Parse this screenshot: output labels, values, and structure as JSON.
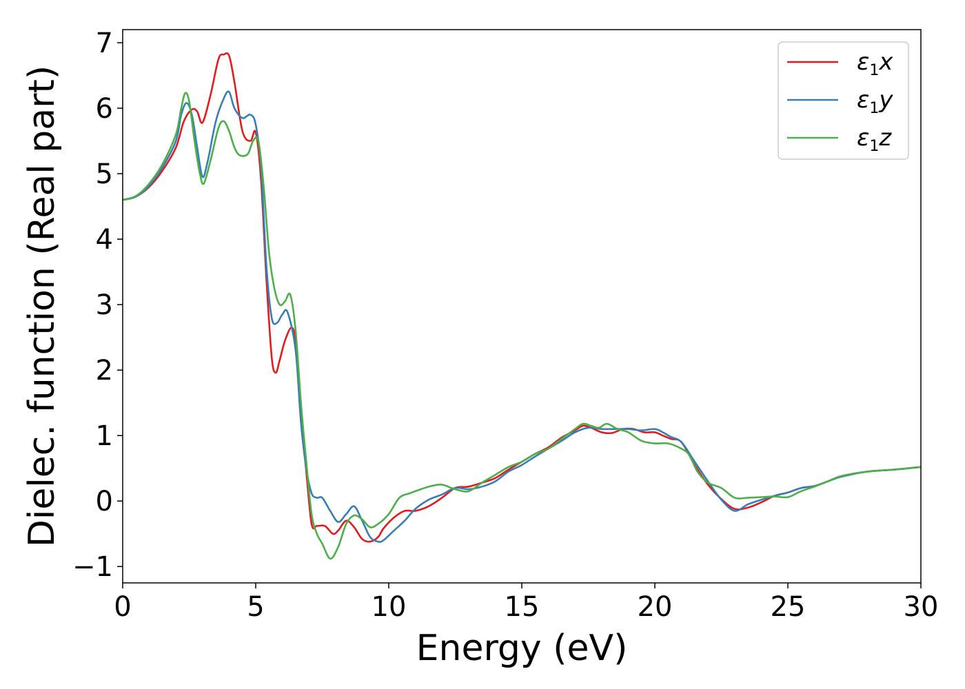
{
  "chart_data": {
    "type": "line",
    "title": "",
    "xlabel": "Energy (eV)",
    "ylabel": "Dielec. function (Real part)",
    "xlim": [
      0,
      30
    ],
    "ylim": [
      -1.25,
      7.2
    ],
    "xticks": [
      0,
      5,
      10,
      15,
      20,
      25,
      30
    ],
    "xtick_labels": [
      "0",
      "5",
      "10",
      "15",
      "20",
      "25",
      "30"
    ],
    "yticks": [
      -1,
      0,
      1,
      2,
      3,
      4,
      5,
      6,
      7
    ],
    "ytick_labels": [
      "−1",
      "0",
      "1",
      "2",
      "3",
      "4",
      "5",
      "6",
      "7"
    ],
    "grid": false,
    "legend_position": "top-right",
    "series": [
      {
        "name": "ε₁x",
        "legend_main": "ε",
        "legend_sub": "1",
        "legend_tail": "x",
        "color": "#e41a1c",
        "x": [
          0,
          0.5,
          1,
          1.5,
          2,
          2.3,
          2.6,
          2.8,
          3.0,
          3.3,
          3.6,
          3.8,
          4.0,
          4.2,
          4.5,
          4.8,
          5.0,
          5.2,
          5.4,
          5.6,
          5.75,
          5.9,
          6.1,
          6.35,
          6.5,
          6.7,
          6.9,
          7.1,
          7.3,
          7.6,
          7.9,
          8.1,
          8.4,
          8.7,
          9.0,
          9.3,
          9.6,
          9.8,
          10.2,
          10.6,
          11.0,
          11.5,
          12.0,
          12.5,
          13.0,
          13.5,
          14.0,
          14.5,
          15.0,
          15.5,
          16.0,
          16.5,
          17.0,
          17.3,
          17.6,
          18.0,
          18.4,
          18.8,
          19.2,
          19.6,
          20.0,
          20.3,
          20.6,
          21.0,
          21.5,
          22.0,
          22.5,
          23.0,
          23.5,
          24.0,
          24.5,
          25.0,
          25.5,
          26.0,
          26.5,
          27.0,
          28.0,
          29.0,
          30.0
        ],
        "y": [
          4.6,
          4.65,
          4.8,
          5.05,
          5.4,
          5.8,
          5.98,
          5.95,
          5.78,
          6.2,
          6.75,
          6.82,
          6.8,
          6.4,
          5.65,
          5.5,
          5.63,
          4.9,
          3.4,
          2.2,
          1.96,
          2.15,
          2.45,
          2.65,
          2.4,
          1.3,
          0.45,
          -0.35,
          -0.38,
          -0.38,
          -0.5,
          -0.45,
          -0.3,
          -0.4,
          -0.58,
          -0.62,
          -0.55,
          -0.42,
          -0.25,
          -0.15,
          -0.15,
          -0.08,
          0.05,
          0.2,
          0.22,
          0.28,
          0.35,
          0.48,
          0.6,
          0.72,
          0.82,
          0.97,
          1.08,
          1.15,
          1.12,
          1.05,
          1.04,
          1.1,
          1.1,
          1.05,
          1.05,
          1.0,
          0.95,
          0.9,
          0.55,
          0.25,
          0.03,
          -0.12,
          -0.1,
          -0.02,
          0.08,
          0.13,
          0.2,
          0.23,
          0.3,
          0.38,
          0.45,
          0.48,
          0.52
        ]
      },
      {
        "name": "ε₁y",
        "legend_main": "ε",
        "legend_sub": "1",
        "legend_tail": "y",
        "color": "#377eb8",
        "x": [
          0,
          0.5,
          1,
          1.5,
          2,
          2.2,
          2.4,
          2.6,
          2.8,
          3.0,
          3.2,
          3.5,
          3.8,
          4.0,
          4.2,
          4.5,
          4.8,
          5.0,
          5.2,
          5.4,
          5.6,
          5.8,
          6.0,
          6.2,
          6.5,
          6.7,
          6.9,
          7.1,
          7.3,
          7.5,
          7.8,
          8.1,
          8.4,
          8.7,
          9.0,
          9.3,
          9.6,
          9.8,
          10.2,
          10.6,
          11.0,
          11.5,
          12.0,
          12.5,
          13.0,
          13.5,
          14.0,
          14.5,
          15.0,
          15.5,
          16.0,
          16.5,
          17.0,
          17.5,
          18.0,
          18.5,
          19.0,
          19.5,
          20.0,
          20.3,
          20.6,
          21.0,
          21.5,
          22.0,
          22.5,
          23.0,
          23.5,
          24.0,
          24.5,
          25.0,
          25.5,
          26.0,
          26.5,
          27.0,
          28.0,
          29.0,
          30.0
        ],
        "y": [
          4.6,
          4.65,
          4.82,
          5.1,
          5.5,
          5.9,
          6.08,
          5.9,
          5.4,
          4.95,
          5.2,
          5.8,
          6.15,
          6.25,
          6.0,
          5.85,
          5.9,
          5.75,
          5.1,
          3.6,
          2.8,
          2.72,
          2.85,
          2.88,
          2.3,
          1.2,
          0.5,
          0.12,
          0.05,
          0.05,
          -0.15,
          -0.32,
          -0.2,
          -0.08,
          -0.3,
          -0.55,
          -0.62,
          -0.6,
          -0.45,
          -0.3,
          -0.12,
          0.02,
          0.1,
          0.2,
          0.18,
          0.22,
          0.3,
          0.45,
          0.55,
          0.68,
          0.8,
          0.92,
          1.05,
          1.12,
          1.1,
          1.1,
          1.1,
          1.08,
          1.1,
          1.05,
          0.98,
          0.9,
          0.6,
          0.3,
          0.02,
          -0.15,
          -0.05,
          0.02,
          0.08,
          0.13,
          0.2,
          0.23,
          0.3,
          0.37,
          0.45,
          0.48,
          0.52
        ]
      },
      {
        "name": "ε₁z",
        "legend_main": "ε",
        "legend_sub": "1",
        "legend_tail": "z",
        "color": "#4daf4a",
        "x": [
          0,
          0.5,
          1,
          1.5,
          2,
          2.2,
          2.35,
          2.5,
          2.7,
          2.9,
          3.05,
          3.3,
          3.6,
          3.8,
          4.0,
          4.2,
          4.4,
          4.7,
          4.9,
          5.1,
          5.3,
          5.5,
          5.7,
          5.9,
          6.1,
          6.3,
          6.5,
          6.7,
          6.9,
          7.1,
          7.3,
          7.5,
          7.8,
          8.1,
          8.4,
          8.7,
          9.0,
          9.3,
          9.6,
          10.0,
          10.4,
          10.8,
          11.2,
          11.6,
          12.0,
          12.5,
          13.0,
          13.5,
          14.0,
          14.5,
          15.0,
          15.5,
          16.0,
          16.5,
          17.0,
          17.3,
          17.6,
          17.9,
          18.2,
          18.6,
          19.0,
          19.5,
          20.0,
          20.5,
          21.0,
          21.3,
          21.6,
          22.0,
          22.5,
          23.0,
          23.5,
          24.0,
          24.5,
          25.0,
          25.5,
          26.0,
          26.5,
          27.0,
          28.0,
          29.0,
          30.0
        ],
        "y": [
          4.6,
          4.66,
          4.85,
          5.15,
          5.6,
          6.0,
          6.23,
          6.1,
          5.5,
          5.0,
          4.85,
          5.2,
          5.7,
          5.8,
          5.65,
          5.4,
          5.28,
          5.3,
          5.5,
          5.5,
          4.8,
          3.8,
          3.25,
          3.0,
          3.05,
          3.15,
          2.6,
          1.5,
          0.6,
          -0.2,
          -0.5,
          -0.65,
          -0.88,
          -0.7,
          -0.35,
          -0.22,
          -0.28,
          -0.4,
          -0.35,
          -0.2,
          0.05,
          0.12,
          0.18,
          0.23,
          0.25,
          0.18,
          0.15,
          0.28,
          0.4,
          0.52,
          0.6,
          0.72,
          0.8,
          0.95,
          1.1,
          1.18,
          1.15,
          1.12,
          1.18,
          1.1,
          1.05,
          0.92,
          0.88,
          0.88,
          0.8,
          0.7,
          0.45,
          0.28,
          0.2,
          0.05,
          0.05,
          0.06,
          0.07,
          0.06,
          0.15,
          0.22,
          0.3,
          0.38,
          0.45,
          0.48,
          0.52
        ]
      }
    ]
  }
}
